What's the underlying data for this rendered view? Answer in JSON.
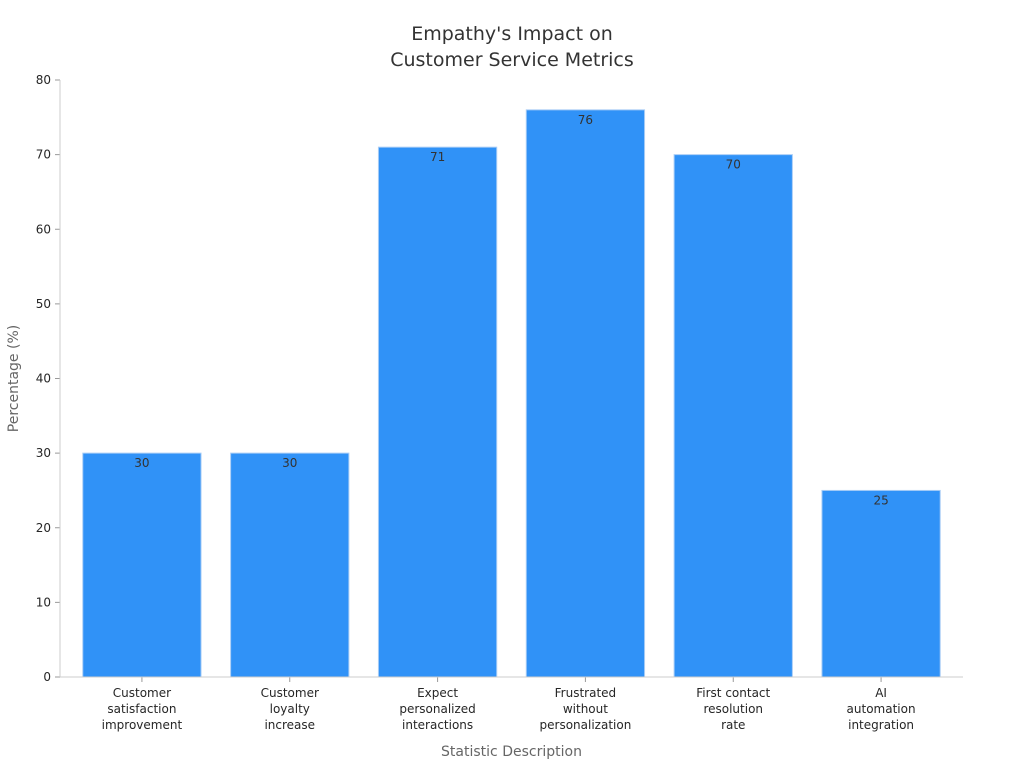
{
  "chart_data": {
    "type": "bar",
    "title": "Empathy's Impact on\nCustomer Service Metrics",
    "xlabel": "Statistic Description",
    "ylabel": "Percentage (%)",
    "ylim": [
      0,
      80
    ],
    "yticks": [
      0,
      10,
      20,
      30,
      40,
      50,
      60,
      70,
      80
    ],
    "categories": [
      "Customer\nsatisfaction\nimprovement",
      "Customer\nloyalty\nincrease",
      "Expect\npersonalized\ninteractions",
      "Frustrated\nwithout\npersonalization",
      "First contact\nresolution\nrate",
      "AI\nautomation\nintegration"
    ],
    "values": [
      30,
      30,
      71,
      76,
      70,
      25
    ],
    "data_labels": [
      "30",
      "30",
      "71",
      "76",
      "70",
      "25"
    ],
    "bar_color": "#3092f7",
    "bar_edge_color": "#a9cdf6",
    "grid": false,
    "legend": "none"
  }
}
